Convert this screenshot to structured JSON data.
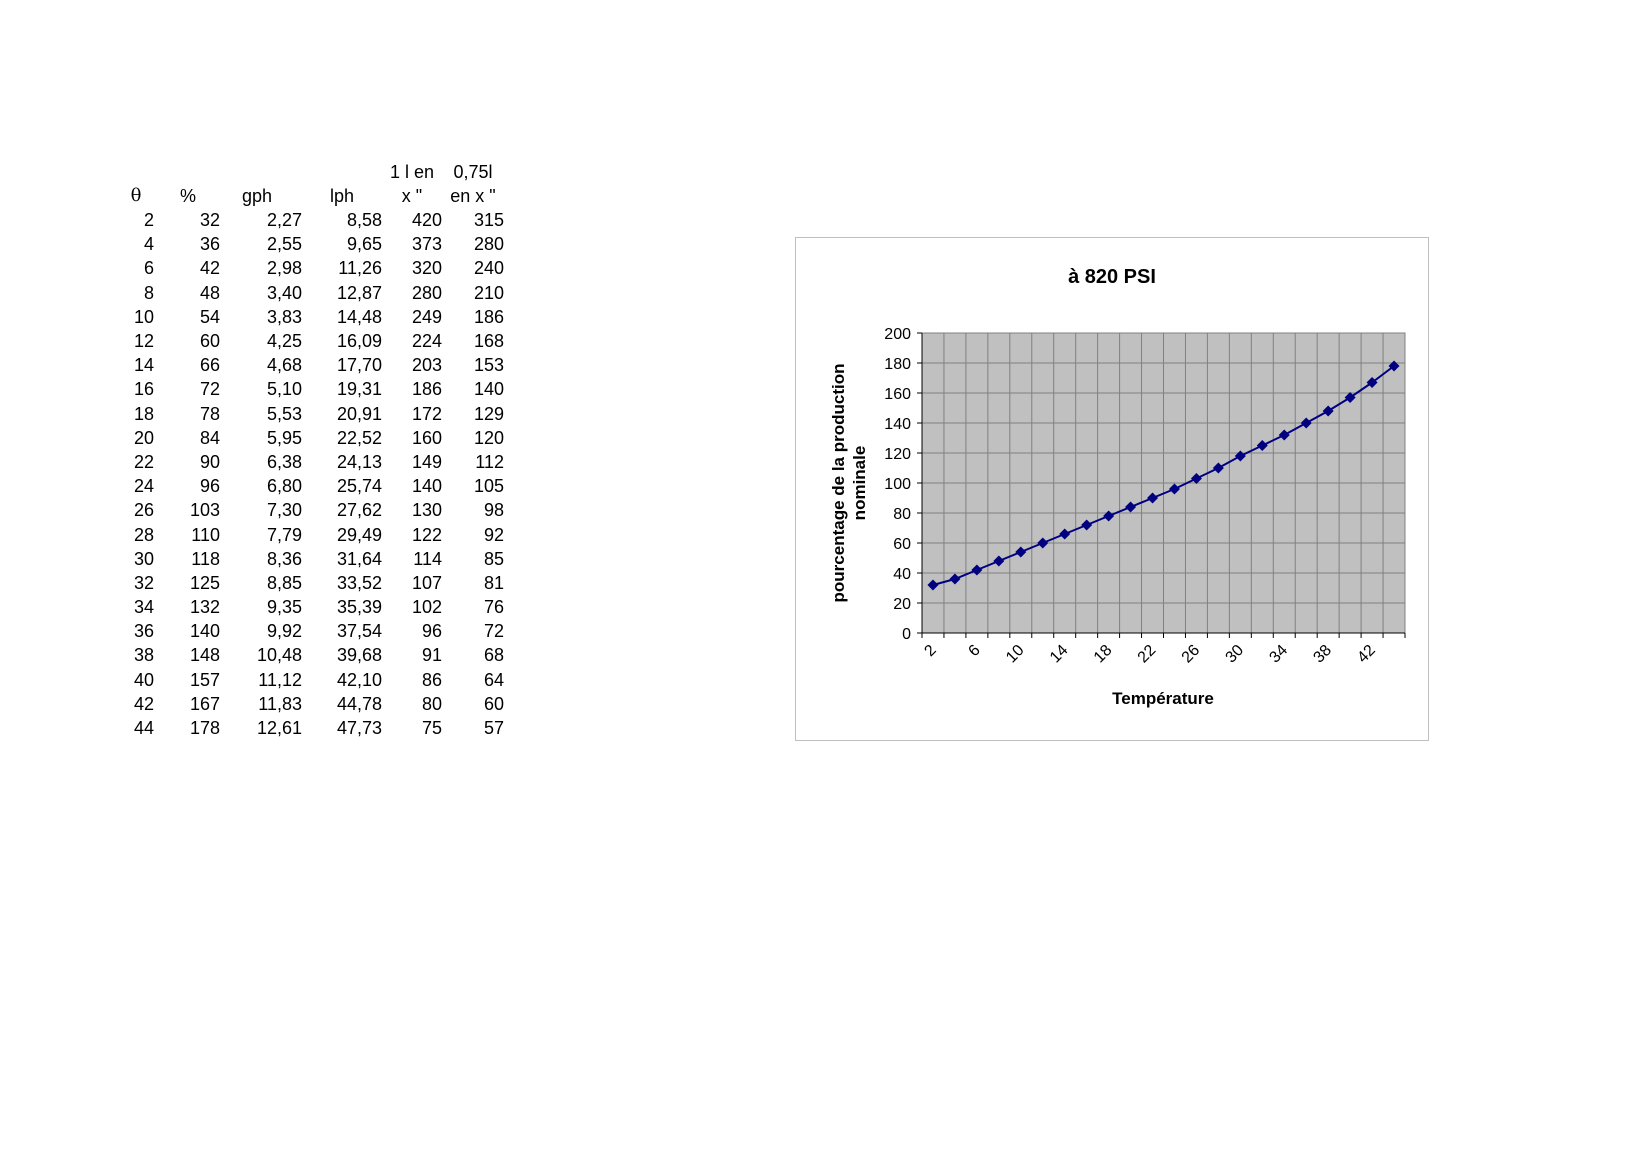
{
  "table": {
    "headers": {
      "theta": "θ",
      "pct": "%",
      "gph": "gph",
      "lph": "lph",
      "one_l_line1": "1 l en",
      "one_l_line2": "x \"",
      "l075_line1": "0,75l",
      "l075_line2": "en x \""
    },
    "rows": [
      [
        "2",
        "32",
        "2,27",
        "8,58",
        "420",
        "315"
      ],
      [
        "4",
        "36",
        "2,55",
        "9,65",
        "373",
        "280"
      ],
      [
        "6",
        "42",
        "2,98",
        "11,26",
        "320",
        "240"
      ],
      [
        "8",
        "48",
        "3,40",
        "12,87",
        "280",
        "210"
      ],
      [
        "10",
        "54",
        "3,83",
        "14,48",
        "249",
        "186"
      ],
      [
        "12",
        "60",
        "4,25",
        "16,09",
        "224",
        "168"
      ],
      [
        "14",
        "66",
        "4,68",
        "17,70",
        "203",
        "153"
      ],
      [
        "16",
        "72",
        "5,10",
        "19,31",
        "186",
        "140"
      ],
      [
        "18",
        "78",
        "5,53",
        "20,91",
        "172",
        "129"
      ],
      [
        "20",
        "84",
        "5,95",
        "22,52",
        "160",
        "120"
      ],
      [
        "22",
        "90",
        "6,38",
        "24,13",
        "149",
        "112"
      ],
      [
        "24",
        "96",
        "6,80",
        "25,74",
        "140",
        "105"
      ],
      [
        "26",
        "103",
        "7,30",
        "27,62",
        "130",
        "98"
      ],
      [
        "28",
        "110",
        "7,79",
        "29,49",
        "122",
        "92"
      ],
      [
        "30",
        "118",
        "8,36",
        "31,64",
        "114",
        "85"
      ],
      [
        "32",
        "125",
        "8,85",
        "33,52",
        "107",
        "81"
      ],
      [
        "34",
        "132",
        "9,35",
        "35,39",
        "102",
        "76"
      ],
      [
        "36",
        "140",
        "9,92",
        "37,54",
        "96",
        "72"
      ],
      [
        "38",
        "148",
        "10,48",
        "39,68",
        "91",
        "68"
      ],
      [
        "40",
        "157",
        "11,12",
        "42,10",
        "86",
        "64"
      ],
      [
        "42",
        "167",
        "11,83",
        "44,78",
        "80",
        "60"
      ],
      [
        "44",
        "178",
        "12,61",
        "47,73",
        "75",
        "57"
      ]
    ]
  },
  "chart_data": {
    "type": "line",
    "title": "à 820 PSI",
    "xlabel": "Température",
    "ylabel_line1": "pourcentage de la production",
    "ylabel_line2": "nominale",
    "categories": [
      "2",
      "4",
      "6",
      "8",
      "10",
      "12",
      "14",
      "16",
      "18",
      "20",
      "22",
      "24",
      "26",
      "28",
      "30",
      "32",
      "34",
      "36",
      "38",
      "40",
      "42",
      "44"
    ],
    "x_tick_labels": [
      "2",
      "6",
      "10",
      "14",
      "18",
      "22",
      "26",
      "30",
      "34",
      "38",
      "42"
    ],
    "series": [
      {
        "values": [
          32,
          36,
          42,
          48,
          54,
          60,
          66,
          72,
          78,
          84,
          90,
          96,
          103,
          110,
          118,
          125,
          132,
          140,
          148,
          157,
          167,
          178
        ]
      }
    ],
    "ylim": [
      0,
      200
    ],
    "y_ticks": [
      "0",
      "20",
      "40",
      "60",
      "80",
      "100",
      "120",
      "140",
      "160",
      "180",
      "200"
    ],
    "grid": true,
    "plot_background": "#c0c0c0",
    "line_color": "#000080",
    "marker": "diamond"
  }
}
